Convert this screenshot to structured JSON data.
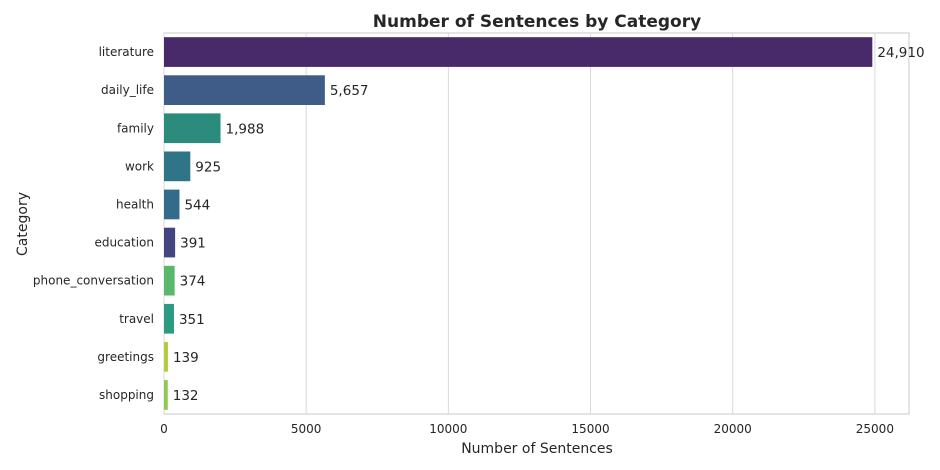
{
  "chart_data": {
    "type": "bar",
    "orientation": "horizontal",
    "title": "Number of Sentences by Category",
    "xlabel": "Number of Sentences",
    "ylabel": "Category",
    "xlim": [
      0,
      26200
    ],
    "x_ticks": [
      0,
      5000,
      10000,
      15000,
      20000,
      25000
    ],
    "x_tick_labels": [
      "0",
      "5000",
      "10000",
      "15000",
      "20000",
      "25000"
    ],
    "grid": "vertical",
    "categories": [
      "literature",
      "daily_life",
      "family",
      "work",
      "health",
      "education",
      "phone_conversation",
      "travel",
      "greetings",
      "shopping"
    ],
    "values": [
      24910,
      5657,
      1988,
      925,
      544,
      391,
      374,
      351,
      139,
      132
    ],
    "data_labels": [
      "24,910",
      "5,657",
      "1,988",
      "925",
      "544",
      "391",
      "374",
      "351",
      "139",
      "132"
    ],
    "colors": [
      "#482a6a",
      "#3f5b87",
      "#2b8b7d",
      "#2f7587",
      "#336b8b",
      "#434480",
      "#5ab86a",
      "#2e9a81",
      "#b3cc3d",
      "#8fc94c"
    ]
  }
}
